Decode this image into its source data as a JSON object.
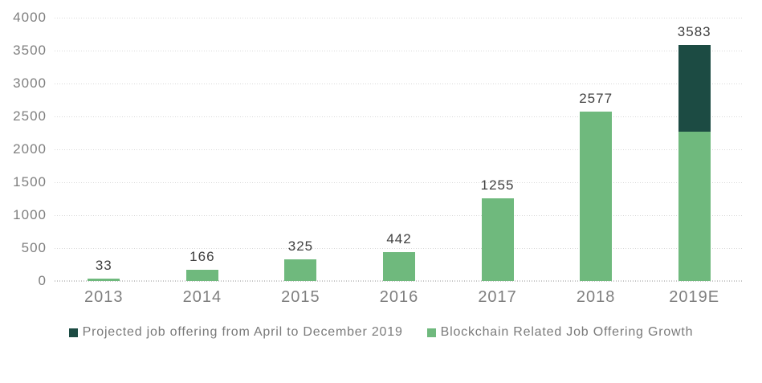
{
  "chart_data": {
    "type": "bar",
    "stacked": true,
    "categories": [
      "2013",
      "2014",
      "2015",
      "2016",
      "2017",
      "2018",
      "2019E"
    ],
    "series": [
      {
        "name": "Blockchain Related Job Offering Growth",
        "color": "#6fb97d",
        "values": [
          33,
          166,
          325,
          442,
          1255,
          2577,
          2270
        ]
      },
      {
        "name": "Projected job offering from April to December 2019",
        "color": "#1c4b43",
        "values": [
          0,
          0,
          0,
          0,
          0,
          0,
          1313
        ]
      }
    ],
    "bar_total_labels": [
      "33",
      "166",
      "325",
      "442",
      "1255",
      "2577",
      "3583"
    ],
    "ylim": [
      0,
      4000
    ],
    "ytick_step": 500,
    "yticks": [
      "0",
      "500",
      "1000",
      "1500",
      "2000",
      "2500",
      "3000",
      "3500",
      "4000"
    ],
    "grid": "horizontal-dotted",
    "legend_position": "bottom",
    "colors": {
      "value_label": "#404040",
      "axis_label": "#7f7f7f",
      "gridline": "#d9d9d9"
    }
  },
  "legend": {
    "items": [
      {
        "label": "Projected job offering from April to December 2019",
        "color": "#1c4b43"
      },
      {
        "label": "Blockchain Related Job Offering Growth",
        "color": "#6fb97d"
      }
    ]
  }
}
